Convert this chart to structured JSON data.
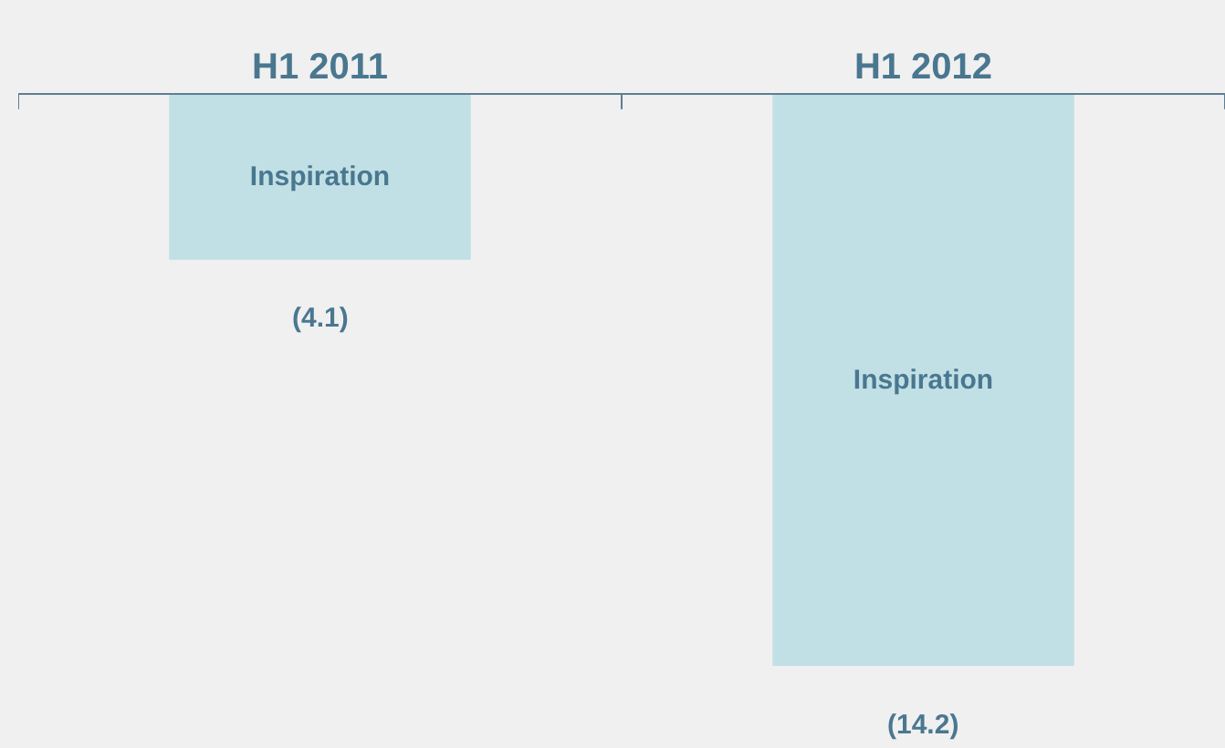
{
  "chart_data": {
    "type": "bar",
    "categories": [
      "H1 2011",
      "H1 2012"
    ],
    "series": [
      {
        "name": "Inspiration",
        "color": "#c1e0e5",
        "values": [
          -4.1,
          -14.2
        ],
        "value_labels": [
          "(4.1)",
          "(14.2)"
        ]
      }
    ],
    "tick_labels": "x",
    "grid": false,
    "legend": false
  }
}
